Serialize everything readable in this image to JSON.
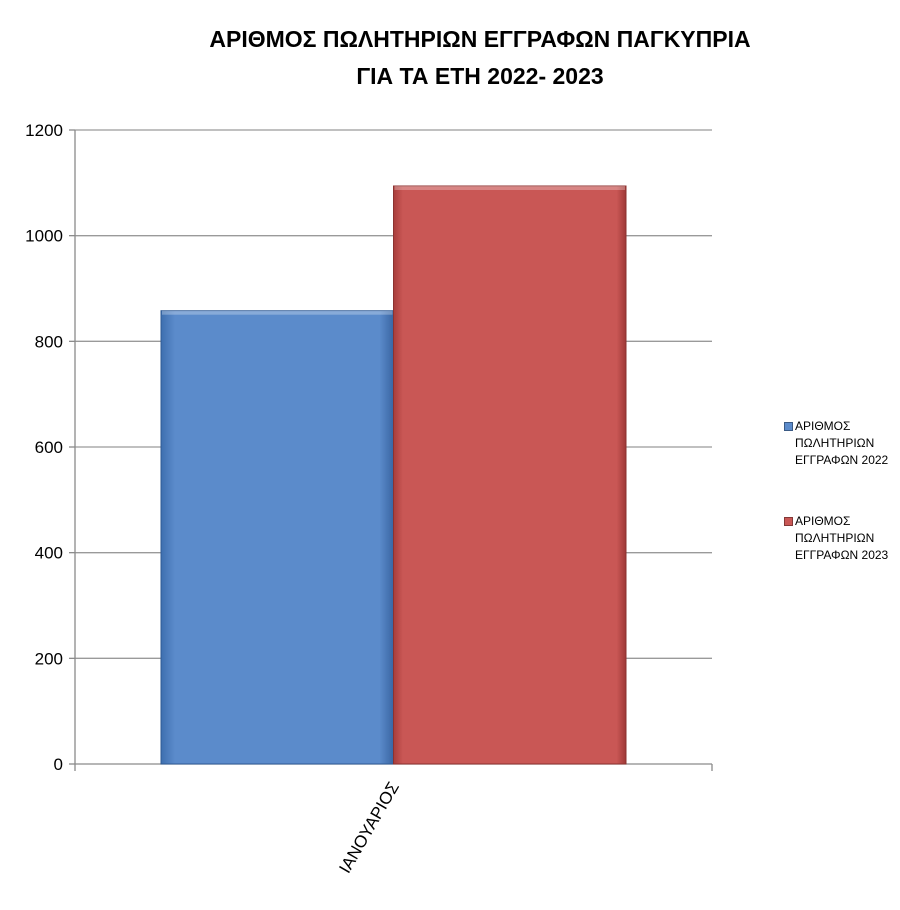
{
  "chart_data": {
    "type": "bar",
    "title_lines": [
      "ΑΡΙΘΜΟΣ ΠΩΛΗΤΗΡΙΩΝ ΕΓΓΡΑΦΩΝ ΠΑΓΚΥΠΡΙΑ",
      "ΓΙΑ ΤΑ ΕΤΗ 2022- 2023"
    ],
    "categories": [
      "ΙΑΝΟΥΑΡΙΟΣ"
    ],
    "series": [
      {
        "name": "ΑΡΙΘΜΟΣ ΠΩΛΗΤΗΡΙΩΝ ΕΓΓΡΑΦΩΝ 2022",
        "name_lines": [
          "ΑΡΙΘΜΟΣ",
          "ΠΩΛΗΤΗΡΙΩΝ",
          "ΕΓΓΡΑΦΩΝ 2022"
        ],
        "values": [
          858
        ],
        "color": "#5B8BCB"
      },
      {
        "name": "ΑΡΙΘΜΟΣ ΠΩΛΗΤΗΡΙΩΝ ΕΓΓΡΑΦΩΝ 2023",
        "name_lines": [
          "ΑΡΙΘΜΟΣ",
          "ΠΩΛΗΤΗΡΙΩΝ",
          "ΕΓΓΡΑΦΩΝ 2023"
        ],
        "values": [
          1094
        ],
        "color": "#C95755"
      }
    ],
    "ylim": [
      0,
      1200
    ],
    "yticks": [
      0,
      200,
      400,
      600,
      800,
      1000,
      1200
    ],
    "grid": true,
    "legend_position": "right",
    "xlabel": "",
    "ylabel": ""
  }
}
